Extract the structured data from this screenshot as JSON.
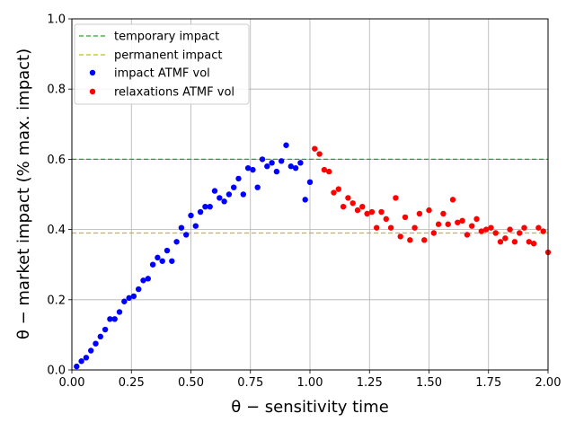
{
  "chart_data": {
    "type": "scatter",
    "xlabel": "θ − sensitivity time",
    "ylabel": "θ − market impact (% max. impact)",
    "xlim": [
      0,
      2.0
    ],
    "ylim": [
      0,
      1.0
    ],
    "xticks": [
      0.0,
      0.25,
      0.5,
      0.75,
      1.0,
      1.25,
      1.5,
      1.75,
      2.0
    ],
    "xtick_labels": [
      "0.00",
      "0.25",
      "0.50",
      "0.75",
      "1.00",
      "1.25",
      "1.50",
      "1.75",
      "2.00"
    ],
    "yticks": [
      0.0,
      0.2,
      0.4,
      0.6,
      0.8,
      1.0
    ],
    "ytick_labels": [
      "0.0",
      "0.2",
      "0.4",
      "0.6",
      "0.8",
      "1.0"
    ],
    "grid": true,
    "legend_position": "top-left",
    "hlines": [
      {
        "name": "temporary impact",
        "y": 0.6,
        "color": "#2ca02c",
        "style": "dashed"
      },
      {
        "name": "permanent impact",
        "y": 0.39,
        "color": "#bcbd22",
        "style": "dashed"
      }
    ],
    "series": [
      {
        "name": "impact ATMF vol",
        "color": "#0000ff",
        "points": [
          [
            0.02,
            0.01
          ],
          [
            0.04,
            0.025
          ],
          [
            0.06,
            0.035
          ],
          [
            0.08,
            0.055
          ],
          [
            0.1,
            0.075
          ],
          [
            0.12,
            0.095
          ],
          [
            0.14,
            0.115
          ],
          [
            0.16,
            0.145
          ],
          [
            0.18,
            0.145
          ],
          [
            0.2,
            0.165
          ],
          [
            0.22,
            0.195
          ],
          [
            0.24,
            0.205
          ],
          [
            0.26,
            0.21
          ],
          [
            0.28,
            0.23
          ],
          [
            0.3,
            0.255
          ],
          [
            0.32,
            0.26
          ],
          [
            0.34,
            0.3
          ],
          [
            0.36,
            0.32
          ],
          [
            0.38,
            0.31
          ],
          [
            0.4,
            0.34
          ],
          [
            0.42,
            0.31
          ],
          [
            0.44,
            0.365
          ],
          [
            0.46,
            0.405
          ],
          [
            0.48,
            0.385
          ],
          [
            0.5,
            0.44
          ],
          [
            0.52,
            0.41
          ],
          [
            0.54,
            0.45
          ],
          [
            0.56,
            0.465
          ],
          [
            0.58,
            0.465
          ],
          [
            0.6,
            0.51
          ],
          [
            0.62,
            0.49
          ],
          [
            0.64,
            0.48
          ],
          [
            0.66,
            0.5
          ],
          [
            0.68,
            0.52
          ],
          [
            0.7,
            0.545
          ],
          [
            0.72,
            0.5
          ],
          [
            0.74,
            0.575
          ],
          [
            0.76,
            0.57
          ],
          [
            0.78,
            0.52
          ],
          [
            0.8,
            0.6
          ],
          [
            0.82,
            0.58
          ],
          [
            0.84,
            0.59
          ],
          [
            0.86,
            0.565
          ],
          [
            0.88,
            0.595
          ],
          [
            0.9,
            0.64
          ],
          [
            0.92,
            0.58
          ],
          [
            0.94,
            0.575
          ],
          [
            0.96,
            0.59
          ],
          [
            0.98,
            0.485
          ],
          [
            1.0,
            0.535
          ]
        ]
      },
      {
        "name": "relaxations ATMF vol",
        "color": "#ff0000",
        "points": [
          [
            1.02,
            0.63
          ],
          [
            1.04,
            0.615
          ],
          [
            1.06,
            0.57
          ],
          [
            1.08,
            0.565
          ],
          [
            1.1,
            0.505
          ],
          [
            1.12,
            0.515
          ],
          [
            1.14,
            0.465
          ],
          [
            1.16,
            0.49
          ],
          [
            1.18,
            0.475
          ],
          [
            1.2,
            0.455
          ],
          [
            1.22,
            0.465
          ],
          [
            1.24,
            0.445
          ],
          [
            1.26,
            0.45
          ],
          [
            1.28,
            0.405
          ],
          [
            1.3,
            0.45
          ],
          [
            1.32,
            0.43
          ],
          [
            1.34,
            0.405
          ],
          [
            1.36,
            0.49
          ],
          [
            1.38,
            0.38
          ],
          [
            1.4,
            0.435
          ],
          [
            1.42,
            0.37
          ],
          [
            1.44,
            0.405
          ],
          [
            1.46,
            0.445
          ],
          [
            1.48,
            0.37
          ],
          [
            1.5,
            0.455
          ],
          [
            1.52,
            0.39
          ],
          [
            1.54,
            0.415
          ],
          [
            1.56,
            0.445
          ],
          [
            1.58,
            0.415
          ],
          [
            1.6,
            0.485
          ],
          [
            1.62,
            0.42
          ],
          [
            1.64,
            0.425
          ],
          [
            1.66,
            0.385
          ],
          [
            1.68,
            0.41
          ],
          [
            1.7,
            0.43
          ],
          [
            1.72,
            0.395
          ],
          [
            1.74,
            0.4
          ],
          [
            1.76,
            0.405
          ],
          [
            1.78,
            0.39
          ],
          [
            1.8,
            0.365
          ],
          [
            1.82,
            0.375
          ],
          [
            1.84,
            0.4
          ],
          [
            1.86,
            0.365
          ],
          [
            1.88,
            0.39
          ],
          [
            1.9,
            0.405
          ],
          [
            1.92,
            0.365
          ],
          [
            1.94,
            0.36
          ],
          [
            1.96,
            0.405
          ],
          [
            1.98,
            0.395
          ],
          [
            2.0,
            0.335
          ]
        ]
      }
    ]
  }
}
